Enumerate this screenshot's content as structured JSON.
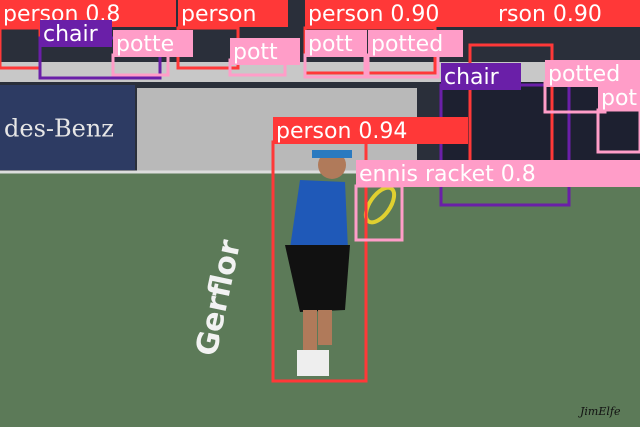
{
  "scene": {
    "banner_text": "des-Benz",
    "court_text": "Gerflor",
    "signature": "JimElfe"
  },
  "detections": [
    {
      "label": "person 0.8"
    },
    {
      "label": "person"
    },
    {
      "label": "person 0.90"
    },
    {
      "label": "rson 0.90"
    },
    {
      "label": "chair"
    },
    {
      "label": "potte"
    },
    {
      "label": "pott"
    },
    {
      "label": "pott"
    },
    {
      "label": "potted"
    },
    {
      "label": "chair"
    },
    {
      "label": "potted"
    },
    {
      "label": "pot"
    },
    {
      "label": "person 0.94"
    },
    {
      "label": "ennis racket 0.8"
    }
  ]
}
